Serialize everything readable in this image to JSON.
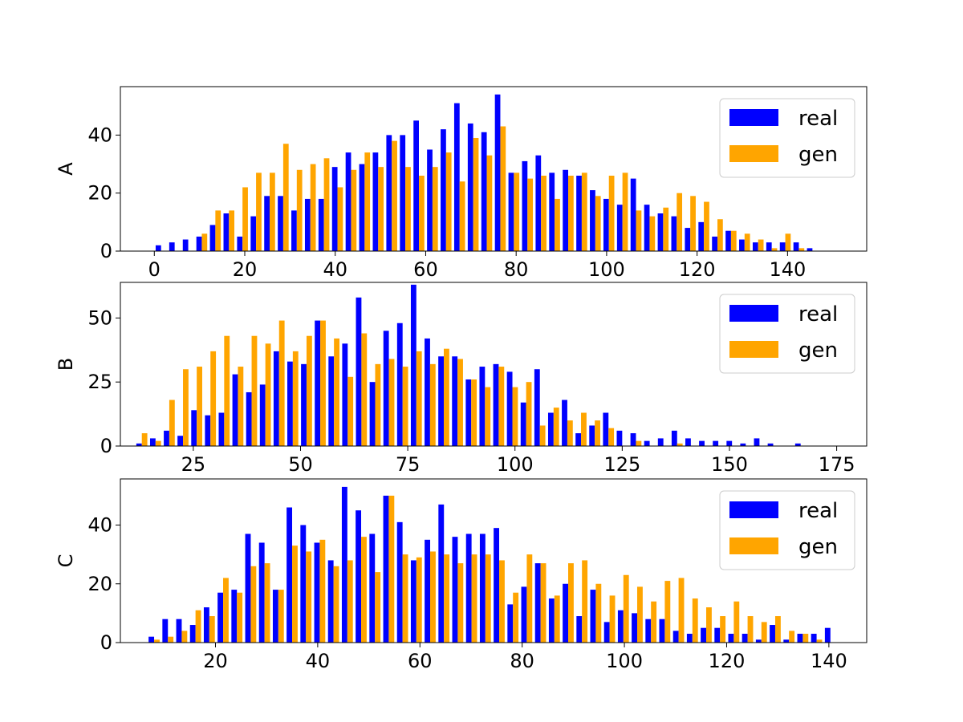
{
  "colors": {
    "real": "#0000ff",
    "gen": "#ffa500"
  },
  "chart_data": [
    {
      "type": "bar",
      "ylabel": "A",
      "xlim": [
        -7.5,
        157.5
      ],
      "ylim": [
        0,
        56.7
      ],
      "xticks": [
        0,
        20,
        40,
        60,
        80,
        100,
        120,
        140
      ],
      "yticks": [
        0,
        20,
        40
      ],
      "bin_start": 1.5,
      "bin_width": 3,
      "legend_position": "top-right",
      "legend": [
        "real",
        "gen"
      ],
      "series": [
        {
          "name": "real",
          "values": [
            2,
            3,
            4,
            5,
            9,
            13,
            5,
            12,
            19,
            19,
            14,
            18,
            18,
            29,
            34,
            30,
            34,
            40,
            40,
            45,
            35,
            42,
            51,
            44,
            41,
            54,
            27,
            31,
            33,
            27,
            28,
            26,
            21,
            18,
            16,
            25,
            16,
            13,
            12,
            8,
            10,
            5,
            7,
            4,
            3,
            3,
            3,
            3,
            1
          ]
        },
        {
          "name": "gen",
          "values": [
            0,
            0,
            0,
            6,
            14,
            14,
            22,
            27,
            27,
            37,
            28,
            30,
            32,
            22,
            28,
            34,
            29,
            38,
            29,
            26,
            29,
            34,
            24,
            39,
            33,
            43,
            27,
            25,
            26,
            18,
            26,
            27,
            19,
            26,
            27,
            14,
            12,
            15,
            20,
            19,
            17,
            11,
            7,
            6,
            4,
            1,
            6,
            1,
            0
          ]
        }
      ]
    },
    {
      "type": "bar",
      "ylabel": "B",
      "xlim": [
        8,
        182
      ],
      "ylim": [
        0,
        63.9
      ],
      "xticks": [
        25,
        50,
        75,
        100,
        125,
        150,
        175
      ],
      "yticks": [
        0,
        25,
        50
      ],
      "bin_start": 13,
      "bin_width": 3.2,
      "legend_position": "top-right",
      "legend": [
        "real",
        "gen"
      ],
      "series": [
        {
          "name": "real",
          "values": [
            1,
            3,
            6,
            4,
            14,
            12,
            13,
            28,
            21,
            24,
            37,
            33,
            32,
            49,
            35,
            40,
            58,
            25,
            45,
            48,
            63,
            42,
            35,
            35,
            26,
            31,
            32,
            29,
            17,
            30,
            13,
            18,
            5,
            8,
            13,
            6,
            5,
            2,
            3,
            6,
            3,
            2,
            2,
            2,
            1,
            3,
            1,
            0,
            1
          ]
        },
        {
          "name": "gen",
          "values": [
            5,
            2,
            18,
            30,
            31,
            37,
            43,
            31,
            43,
            40,
            49,
            37,
            43,
            49,
            42,
            27,
            44,
            32,
            34,
            31,
            37,
            32,
            38,
            34,
            26,
            23,
            31,
            23,
            25,
            8,
            15,
            10,
            13,
            10,
            7,
            0,
            2,
            0,
            0,
            1,
            0,
            0,
            0,
            0,
            0,
            0,
            0,
            0,
            0
          ]
        }
      ]
    },
    {
      "type": "bar",
      "ylabel": "C",
      "xlim": [
        1.4,
        147.4
      ],
      "ylim": [
        0,
        55.7
      ],
      "xticks": [
        20,
        40,
        60,
        80,
        100,
        120,
        140
      ],
      "yticks": [
        0,
        20,
        40
      ],
      "bin_start": 8,
      "bin_width": 2.7,
      "legend_position": "top-right",
      "legend": [
        "real",
        "gen"
      ],
      "series": [
        {
          "name": "real",
          "values": [
            2,
            8,
            8,
            6,
            12,
            17,
            18,
            37,
            34,
            18,
            46,
            40,
            34,
            28,
            53,
            45,
            37,
            50,
            41,
            28,
            35,
            47,
            36,
            37,
            37,
            39,
            13,
            19,
            27,
            15,
            20,
            9,
            18,
            7,
            11,
            10,
            8,
            8,
            4,
            3,
            5,
            5,
            3,
            3,
            1,
            6,
            1,
            3,
            3,
            5
          ]
        },
        {
          "name": "gen",
          "values": [
            1,
            2,
            4,
            11,
            9,
            22,
            17,
            26,
            27,
            18,
            33,
            31,
            35,
            26,
            28,
            36,
            24,
            50,
            30,
            29,
            31,
            30,
            27,
            30,
            30,
            28,
            17,
            30,
            27,
            16,
            27,
            28,
            20,
            16,
            23,
            19,
            14,
            21,
            22,
            15,
            12,
            9,
            14,
            9,
            7,
            9,
            4,
            3,
            1,
            0
          ]
        }
      ]
    }
  ]
}
